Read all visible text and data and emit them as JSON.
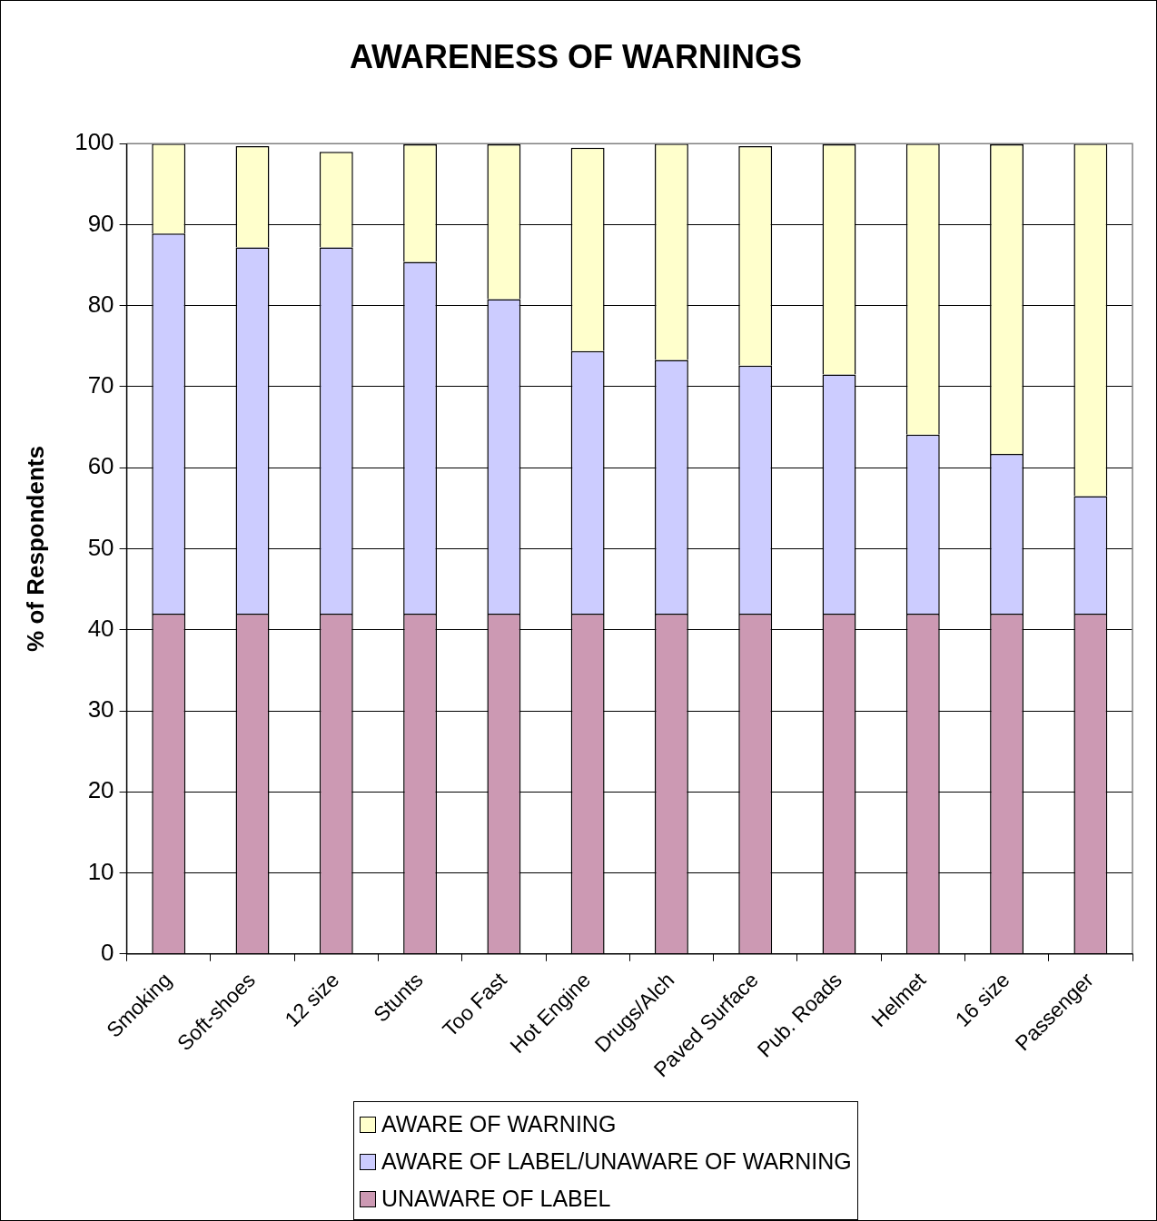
{
  "chart_data": {
    "type": "bar",
    "title": "AWARENESS OF WARNINGS",
    "ylabel": "% of Respondents",
    "categories": [
      "Smoking",
      "Soft-shoes",
      "12 size",
      "Stunts",
      "Too Fast",
      "Hot Engine",
      "Drugs/Alch",
      "Paved Surface",
      "Pub. Roads",
      "Helmet",
      "16 size",
      "Passenger"
    ],
    "stacked": true,
    "ylim": [
      0,
      100
    ],
    "yticks": [
      0,
      10,
      20,
      30,
      40,
      50,
      60,
      70,
      80,
      90,
      100
    ],
    "grid": "y",
    "legend": "bottom",
    "series": [
      {
        "name": "UNAWARE OF LABEL",
        "color": "#cc99b3",
        "values": [
          42,
          42,
          42,
          42,
          42,
          42,
          42,
          42,
          42,
          42,
          42,
          42
        ]
      },
      {
        "name": "AWARE OF LABEL/UNAWARE OF WARNING",
        "color": "#ccccff",
        "values": [
          46.9,
          45.2,
          45.2,
          43.4,
          38.8,
          32.4,
          31.3,
          30.6,
          29.5,
          22.1,
          19.7,
          14.5
        ]
      },
      {
        "name": "AWARE OF WARNING",
        "color": "#ffffcc",
        "values": [
          11.1,
          12.5,
          11.8,
          14.5,
          19.1,
          25.1,
          26.7,
          27.1,
          28.4,
          35.9,
          38.2,
          43.5
        ]
      }
    ]
  }
}
